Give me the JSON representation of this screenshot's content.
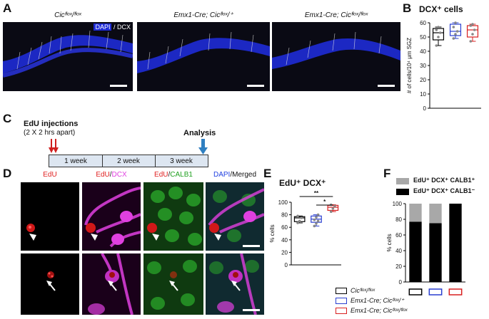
{
  "panels": {
    "A": "A",
    "B": "B",
    "C": "C",
    "D": "D",
    "E": "E",
    "F": "F"
  },
  "panel_a": {
    "genotypes": [
      "Cicᶠˡᵒˣ/ᶠˡᵒˣ",
      "Emx1-Cre; Cicᶠˡᵒˣ/⁺",
      "Emx1-Cre; Cicᶠˡᵒˣ/ᶠˡᵒˣ"
    ],
    "stain_dapi": "DAPI",
    "stain_sep": " / ",
    "stain_dcx": "DCX",
    "colors": {
      "dapi": "#1e2bd6",
      "dcx": "#f2f2f2"
    }
  },
  "panel_c": {
    "injection_title": "EdU injections",
    "injection_sub": "(2 X 2 hrs apart)",
    "analysis": "Analysis",
    "weeks": [
      "1 week",
      "2 week",
      "3 week"
    ],
    "colors": {
      "injection": "#d01f1f",
      "analysis": "#2f7fc1"
    }
  },
  "panel_d": {
    "col_edu": "EdU",
    "col_dcx_a": "EdU",
    "col_dcx_sep": "/",
    "col_dcx_b": "DCX",
    "col_calb_a": "EdU",
    "col_calb_sep": "/",
    "col_calb_b": "CALB1",
    "col_merge_a": "DAPI",
    "col_merge_sep": "/",
    "col_merge_b": "Merged",
    "colors": {
      "edu": "#e02020",
      "dcx": "#e040e0",
      "calb1": "#20c020",
      "dapi": "#2040e0"
    }
  },
  "legend": {
    "items": [
      {
        "label": "Cicᶠˡᵒˣ/ᶠˡᵒˣ",
        "color": "#000000"
      },
      {
        "label": "Emx1-Cre; Cicᶠˡᵒˣ/⁺",
        "color": "#2a3fd0"
      },
      {
        "label": "Emx1-Cre; Cicᶠˡᵒˣ/ᶠˡᵒˣ",
        "color": "#d82020"
      }
    ]
  },
  "chart_data": [
    {
      "id": "B",
      "type": "box",
      "title": "DCX⁺ cells",
      "ylabel": "# of cells/10⁴ μm SGZ",
      "ylim": [
        0,
        60
      ],
      "yticks": [
        "0",
        "10",
        "20",
        "30",
        "40",
        "50",
        "60"
      ],
      "series": [
        {
          "color": "#000000",
          "min": 44,
          "q1": 48,
          "median": 53,
          "q3": 56,
          "max": 57,
          "points": [
            44,
            50,
            53,
            55,
            57
          ]
        },
        {
          "color": "#2a3fd0",
          "min": 49,
          "q1": 51,
          "median": 54,
          "q3": 59,
          "max": 60,
          "points": [
            49,
            52,
            54,
            57,
            60
          ]
        },
        {
          "color": "#d82020",
          "min": 47,
          "q1": 50,
          "median": 55,
          "q3": 58,
          "max": 59,
          "points": [
            47,
            52,
            55,
            58,
            59
          ]
        }
      ]
    },
    {
      "id": "E",
      "type": "box",
      "title": "EdU⁺ DCX⁺",
      "ylabel": "% cells",
      "ylim": [
        0,
        100
      ],
      "yticks": [
        "0",
        "20",
        "40",
        "60",
        "80",
        "100"
      ],
      "significance": [
        {
          "label": "**"
        },
        {
          "label": "*"
        }
      ],
      "series": [
        {
          "color": "#000000",
          "min": 67,
          "q1": 69,
          "median": 75,
          "q3": 77,
          "max": 78,
          "points": [
            67,
            70,
            75,
            78
          ]
        },
        {
          "color": "#2a3fd0",
          "min": 62,
          "q1": 68,
          "median": 73,
          "q3": 78,
          "max": 80,
          "points": [
            62,
            66,
            70,
            72,
            76,
            80
          ]
        },
        {
          "color": "#d82020",
          "min": 85,
          "q1": 87,
          "median": 92,
          "q3": 95,
          "max": 96,
          "points": [
            85,
            90,
            94,
            96
          ]
        }
      ]
    },
    {
      "id": "F",
      "type": "bar",
      "stacked": true,
      "ylabel": "% cells",
      "ylim": [
        0,
        100
      ],
      "yticks": [
        "0",
        "20",
        "40",
        "60",
        "80",
        "100"
      ],
      "categories": [
        "1",
        "2",
        "3"
      ],
      "category_colors": [
        "#000000",
        "#2a3fd0",
        "#d82020"
      ],
      "series": [
        {
          "name": "EdU⁺ DCX⁺ CALB1⁻",
          "color": "#000000",
          "values": [
            77,
            75,
            100
          ]
        },
        {
          "name": "EdU⁺ DCX⁺ CALB1⁺",
          "color": "#a8a8a8",
          "values": [
            23,
            25,
            0
          ]
        }
      ]
    }
  ]
}
